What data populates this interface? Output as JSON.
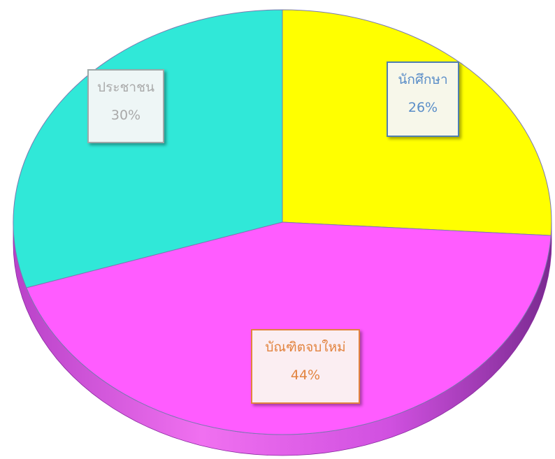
{
  "chart_data": {
    "type": "pie",
    "title": "",
    "categories": [
      "นักศึกษา",
      "บัณฑิตจบใหม่",
      "ประชาชน"
    ],
    "values": [
      26,
      44,
      30
    ],
    "labels": [
      {
        "category": "นักศึกษา",
        "percent": "26%"
      },
      {
        "category": "บัณฑิตจบใหม่",
        "percent": "44%"
      },
      {
        "category": "ประชาชน",
        "percent": "30%"
      }
    ],
    "colors": [
      "#ffff00",
      "#ff5cff",
      "#30e8d8"
    ],
    "side_colors": [
      "#d8d800",
      "#b83cd8",
      "#20b8aa"
    ],
    "legend": "none",
    "style": "3d"
  }
}
